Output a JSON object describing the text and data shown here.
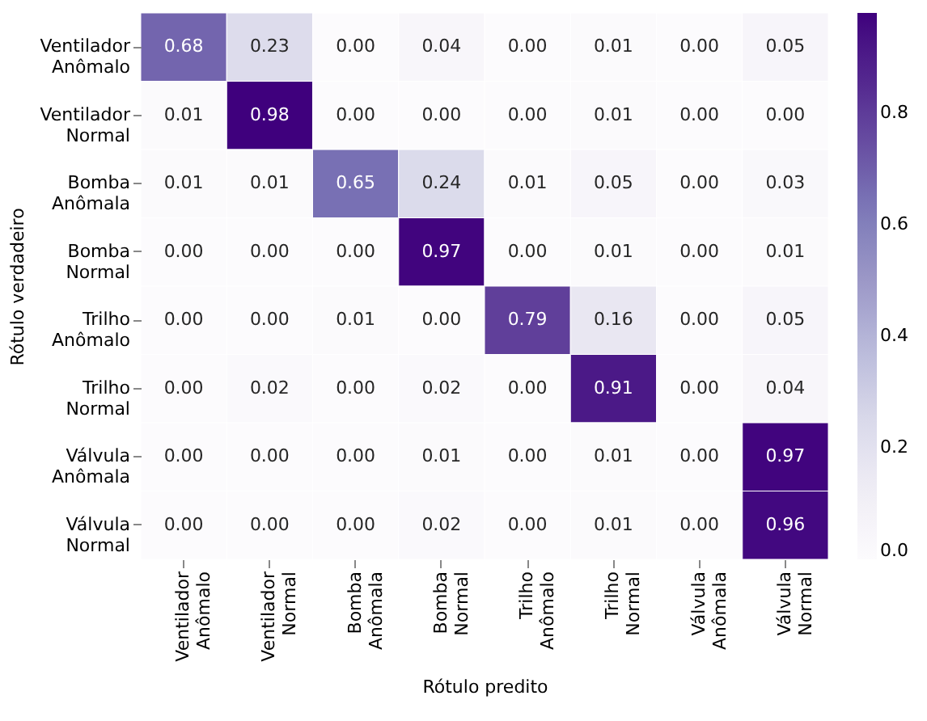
{
  "chart_data": {
    "type": "heatmap",
    "xlabel": "Rótulo predito",
    "ylabel": "Rótulo verdadeiro",
    "categories": [
      "Ventilador\nAnômalo",
      "Ventilador\nNormal",
      "Bomba\nAnômala",
      "Bomba\nNormal",
      "Trilho\nAnômalo",
      "Trilho\nNormal",
      "Válvula\nAnômala",
      "Válvula\nNormal"
    ],
    "y_categories": [
      "Ventilador\nAnômalo",
      "Ventilador\nNormal",
      "Bomba\nAnômala",
      "Bomba\nNormal",
      "Trilho\nAnômalo",
      "Trilho\nNormal",
      "Válvula\nAnômala",
      "Válvula\nNormal"
    ],
    "cells": [
      [
        0.68,
        0.23,
        0.0,
        0.04,
        0.0,
        0.01,
        0.0,
        0.05
      ],
      [
        0.01,
        0.98,
        0.0,
        0.0,
        0.0,
        0.01,
        0.0,
        0.0
      ],
      [
        0.01,
        0.01,
        0.65,
        0.24,
        0.01,
        0.05,
        0.0,
        0.03
      ],
      [
        0.0,
        0.0,
        0.0,
        0.97,
        0.0,
        0.01,
        0.0,
        0.01
      ],
      [
        0.0,
        0.0,
        0.01,
        0.0,
        0.79,
        0.16,
        0.0,
        0.05
      ],
      [
        0.0,
        0.02,
        0.0,
        0.02,
        0.0,
        0.91,
        0.0,
        0.04
      ],
      [
        0.0,
        0.0,
        0.0,
        0.01,
        0.0,
        0.01,
        0.0,
        0.97
      ],
      [
        0.0,
        0.0,
        0.0,
        0.02,
        0.0,
        0.01,
        0.0,
        0.96
      ]
    ],
    "cell_labels": [
      [
        "0.68",
        "0.23",
        "0.00",
        "0.04",
        "0.00",
        "0.01",
        "0.00",
        "0.05"
      ],
      [
        "0.01",
        "0.98",
        "0.00",
        "0.00",
        "0.00",
        "0.01",
        "0.00",
        "0.00"
      ],
      [
        "0.01",
        "0.01",
        "0.65",
        "0.24",
        "0.01",
        "0.05",
        "0.00",
        "0.03"
      ],
      [
        "0.00",
        "0.00",
        "0.00",
        "0.97",
        "0.00",
        "0.01",
        "0.00",
        "0.01"
      ],
      [
        "0.00",
        "0.00",
        "0.01",
        "0.00",
        "0.79",
        "0.16",
        "0.00",
        "0.05"
      ],
      [
        "0.00",
        "0.02",
        "0.00",
        "0.02",
        "0.00",
        "0.91",
        "0.00",
        "0.04"
      ],
      [
        "0.00",
        "0.00",
        "0.00",
        "0.01",
        "0.00",
        "0.01",
        "0.00",
        "0.97"
      ],
      [
        "0.00",
        "0.00",
        "0.00",
        "0.02",
        "0.00",
        "0.01",
        "0.00",
        "0.96"
      ]
    ],
    "clim": [
      0,
      0.98
    ],
    "cticks": [
      {
        "value": 0,
        "label": "0.0"
      },
      {
        "value": 0.2,
        "label": "0.2"
      },
      {
        "value": 0.4,
        "label": "0.4"
      },
      {
        "value": 0.6,
        "label": "0.6"
      },
      {
        "value": 0.8,
        "label": "0.8"
      }
    ]
  }
}
